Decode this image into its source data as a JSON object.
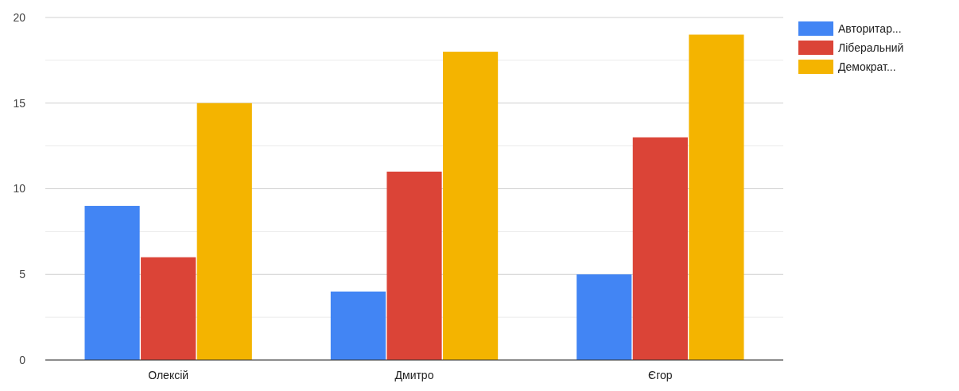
{
  "chart_data": {
    "type": "bar",
    "categories": [
      "Олексій",
      "Дмитро",
      "Єгор"
    ],
    "series": [
      {
        "name": "Авторитар...",
        "color": "#4285f4",
        "values": [
          9,
          4,
          5
        ]
      },
      {
        "name": "Ліберальний",
        "color": "#db4437",
        "values": [
          6,
          11,
          13
        ]
      },
      {
        "name": "Демократ...",
        "color": "#f4b400",
        "values": [
          15,
          18,
          19
        ]
      }
    ],
    "ylim": [
      0,
      20
    ],
    "yticks": [
      0,
      {
        "value": 2.5,
        "label": null
      },
      5,
      {
        "value": 7.5,
        "label": null
      },
      10,
      {
        "value": 12.5,
        "label": null
      },
      15,
      {
        "value": 17.5,
        "label": null
      },
      20
    ],
    "grid": "y",
    "legend": "top right"
  }
}
